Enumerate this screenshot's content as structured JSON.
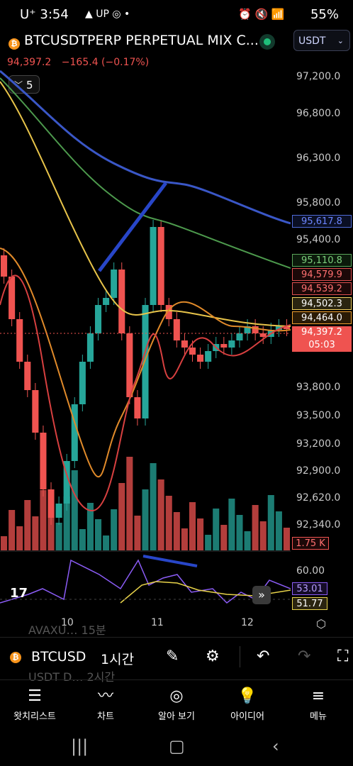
{
  "status_bar": {
    "carrier": "U⁺ 3:54",
    "left_icons": "▲ UP ◎ •",
    "battery": "55%",
    "right_icons": "⏰ 🔇 📶"
  },
  "header": {
    "symbol": "BTCUSDTPERP PERPETUAL MIX C...",
    "currency": "USDT",
    "last_price": "94,397.2",
    "change": "−165.4 (−0.17%)",
    "interval_count": "5"
  },
  "chart_data": {
    "type": "candlestick",
    "y_axis_ticks": [
      "97,200.0",
      "96,800.0",
      "96,300.0",
      "95,800.0",
      "95,400.0",
      "93,800.0",
      "93,500.0",
      "93,200.0",
      "92,900.0",
      "92,620.0",
      "92,340.0"
    ],
    "price_tags": [
      {
        "value": "95,617.8",
        "color": "#4f6bd8"
      },
      {
        "value": "95,110.8",
        "color": "#5aa55a"
      },
      {
        "value": "94,579.9",
        "color": "#e05050"
      },
      {
        "value": "94,539.2",
        "color": "#e05050"
      },
      {
        "value": "94,502.3",
        "color": "#f0d060"
      },
      {
        "value": "94,464.0",
        "color": "#f0a030"
      },
      {
        "value": "94,397.2",
        "color": "#ef5350"
      }
    ],
    "countdown": "05:03",
    "volume_tag": "1.75 K",
    "x_axis_ticks": [
      "10",
      "11",
      "12"
    ],
    "indicator": {
      "level_label": "60.00",
      "values": [
        "53.01",
        "51.77"
      ]
    },
    "colors": {
      "up": "#26a69a",
      "down": "#ef5350",
      "ma_blue": "#3a57c7",
      "ma_green": "#4d9a4d",
      "ma_yellow": "#e8c44a",
      "ma_orange": "#e08a2a",
      "ma_red": "#d84040"
    }
  },
  "toolbar": {
    "symbol": "BTCUSD",
    "interval": "1시간",
    "menu_ghost_1": "AVAXU…  15분",
    "menu_ghost_2": "USDT D…  2시간"
  },
  "tabs": [
    {
      "label": "왓치리스트",
      "icon": "watchlist-icon"
    },
    {
      "label": "차트",
      "icon": "chart-icon"
    },
    {
      "label": "알아 보기",
      "icon": "compass-icon"
    },
    {
      "label": "아이디어",
      "icon": "idea-icon"
    },
    {
      "label": "메뉴",
      "icon": "menu-icon"
    }
  ]
}
